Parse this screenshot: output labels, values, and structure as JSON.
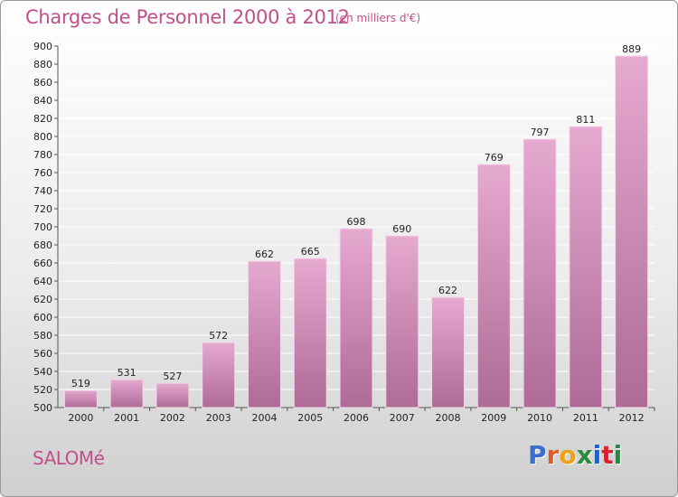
{
  "header": {
    "title": "Charges de Personnel 2000 à 2012",
    "subtitle": "(en milliers d'€)"
  },
  "footer": {
    "town": "SALOMé",
    "logo_letters": [
      "P",
      "r",
      "o",
      "x",
      "i",
      "t",
      "i"
    ],
    "logo_colors": [
      "#3a6fd0",
      "#e25a2a",
      "#f0a019",
      "#2b8c3a",
      "#1f60c4",
      "#d7222d",
      "#1f8e3e"
    ]
  },
  "colors": {
    "accent": "#c0508a",
    "bar_top": "#e6a9d0",
    "bar_bottom": "#ad6b96",
    "grid": "#ffffff"
  },
  "chart_data": {
    "type": "bar",
    "categories": [
      "2000",
      "2001",
      "2002",
      "2003",
      "2004",
      "2005",
      "2006",
      "2007",
      "2008",
      "2009",
      "2010",
      "2011",
      "2012"
    ],
    "values": [
      519,
      531,
      527,
      572,
      662,
      665,
      698,
      690,
      622,
      769,
      797,
      811,
      889
    ],
    "ylim": [
      500,
      900
    ],
    "yticks": [
      500,
      520,
      540,
      560,
      580,
      600,
      620,
      640,
      660,
      680,
      700,
      720,
      740,
      760,
      780,
      800,
      820,
      840,
      860,
      880,
      900
    ],
    "grid": true
  }
}
